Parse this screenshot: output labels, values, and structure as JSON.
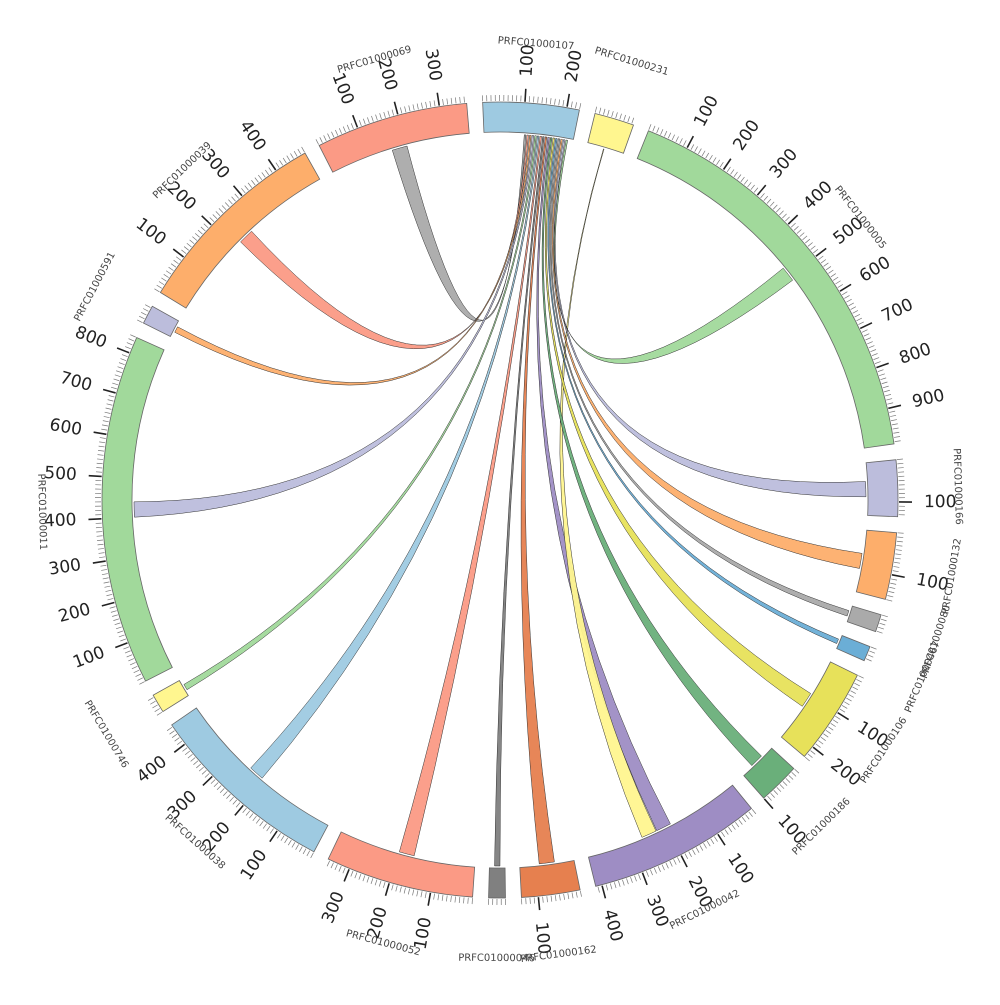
{
  "diagram": {
    "type": "circos",
    "segments": [
      {
        "name": "PRFC01000107",
        "length": 230,
        "color": "#9ecae1",
        "ticks": [
          "100",
          "200"
        ]
      },
      {
        "name": "PRFC01000231",
        "length": 95,
        "color": "#fff68f",
        "ticks": []
      },
      {
        "name": "PRFC01000005",
        "length": 985,
        "color": "#a1d99b",
        "ticks": [
          "100",
          "200",
          "300",
          "400",
          "500",
          "600",
          "700",
          "800",
          "900"
        ]
      },
      {
        "name": "PRFC01000166",
        "length": 135,
        "color": "#bcbddc",
        "ticks": [
          "100"
        ]
      },
      {
        "name": "PRFC01000132",
        "length": 160,
        "color": "#fdae6b",
        "ticks": [
          "100"
        ]
      },
      {
        "name": "PRFC01000080",
        "length": 42,
        "color": "#aaaaaa",
        "ticks": []
      },
      {
        "name": "PRFC01000467",
        "length": 36,
        "color": "#6baed6",
        "ticks": []
      },
      {
        "name": "PRFC01000106",
        "length": 230,
        "color": "#e7e15a",
        "ticks": [
          "100",
          "200"
        ]
      },
      {
        "name": "PRFC01000186",
        "length": 100,
        "color": "#6aaf7a",
        "ticks": [
          "100"
        ]
      },
      {
        "name": "PRFC01000042",
        "length": 415,
        "color": "#9e8dc4",
        "ticks": [
          "100",
          "200",
          "300",
          "400"
        ]
      },
      {
        "name": "PRFC01000162",
        "length": 140,
        "color": "#e6804f",
        "ticks": [
          "100"
        ]
      },
      {
        "name": "PRFC01000046",
        "length": 40,
        "color": "#808080",
        "ticks": []
      },
      {
        "name": "PRFC01000052",
        "length": 355,
        "color": "#fb9a85",
        "ticks": [
          "100",
          "200",
          "300"
        ]
      },
      {
        "name": "PRFC01000038",
        "length": 455,
        "color": "#9ecae1",
        "ticks": [
          "100",
          "200",
          "300",
          "400"
        ]
      },
      {
        "name": "PRFC01000746",
        "length": 45,
        "color": "#fff68f",
        "ticks": []
      },
      {
        "name": "PRFC01000011",
        "length": 840,
        "color": "#a1d99b",
        "ticks": [
          "100",
          "200",
          "300",
          "400",
          "500",
          "600",
          "700",
          "800"
        ]
      },
      {
        "name": "PRFC01000591",
        "length": 45,
        "color": "#bcbddc",
        "ticks": []
      },
      {
        "name": "PRFC01000039",
        "length": 480,
        "color": "#fdae6b",
        "ticks": [
          "100",
          "200",
          "300",
          "400"
        ]
      },
      {
        "name": "PRFC01000069",
        "length": 365,
        "color": "#fb9a85",
        "ticks": [
          "100",
          "200",
          "300"
        ]
      }
    ],
    "links": [
      {
        "from": "PRFC01000107",
        "to": "PRFC01000069",
        "color": "#aaaaaa"
      },
      {
        "from": "PRFC01000107",
        "to": "PRFC01000039",
        "color": "#fb9a85"
      },
      {
        "from": "PRFC01000107",
        "to": "PRFC01000591",
        "color": "#fdae6b"
      },
      {
        "from": "PRFC01000107",
        "to": "PRFC01000011",
        "color": "#bcbddc"
      },
      {
        "from": "PRFC01000107",
        "to": "PRFC01000746",
        "color": "#a1d99b"
      },
      {
        "from": "PRFC01000107",
        "to": "PRFC01000038",
        "color": "#9ecae1"
      },
      {
        "from": "PRFC01000107",
        "to": "PRFC01000052",
        "color": "#fb9a85"
      },
      {
        "from": "PRFC01000107",
        "to": "PRFC01000046",
        "color": "#808080"
      },
      {
        "from": "PRFC01000107",
        "to": "PRFC01000162",
        "color": "#e6804f"
      },
      {
        "from": "PRFC01000107",
        "to": "PRFC01000042",
        "color": "#9e8dc4"
      },
      {
        "from": "PRFC01000231",
        "to": "PRFC01000042",
        "color": "#fff68f"
      },
      {
        "from": "PRFC01000107",
        "to": "PRFC01000186",
        "color": "#6aaf7a"
      },
      {
        "from": "PRFC01000107",
        "to": "PRFC01000106",
        "color": "#e7e15a"
      },
      {
        "from": "PRFC01000107",
        "to": "PRFC01000467",
        "color": "#6baed6"
      },
      {
        "from": "PRFC01000107",
        "to": "PRFC01000080",
        "color": "#aaaaaa"
      },
      {
        "from": "PRFC01000107",
        "to": "PRFC01000132",
        "color": "#fdae6b"
      },
      {
        "from": "PRFC01000107",
        "to": "PRFC01000166",
        "color": "#bcbddc"
      },
      {
        "from": "PRFC01000107",
        "to": "PRFC01000005",
        "color": "#a1d99b"
      }
    ]
  }
}
